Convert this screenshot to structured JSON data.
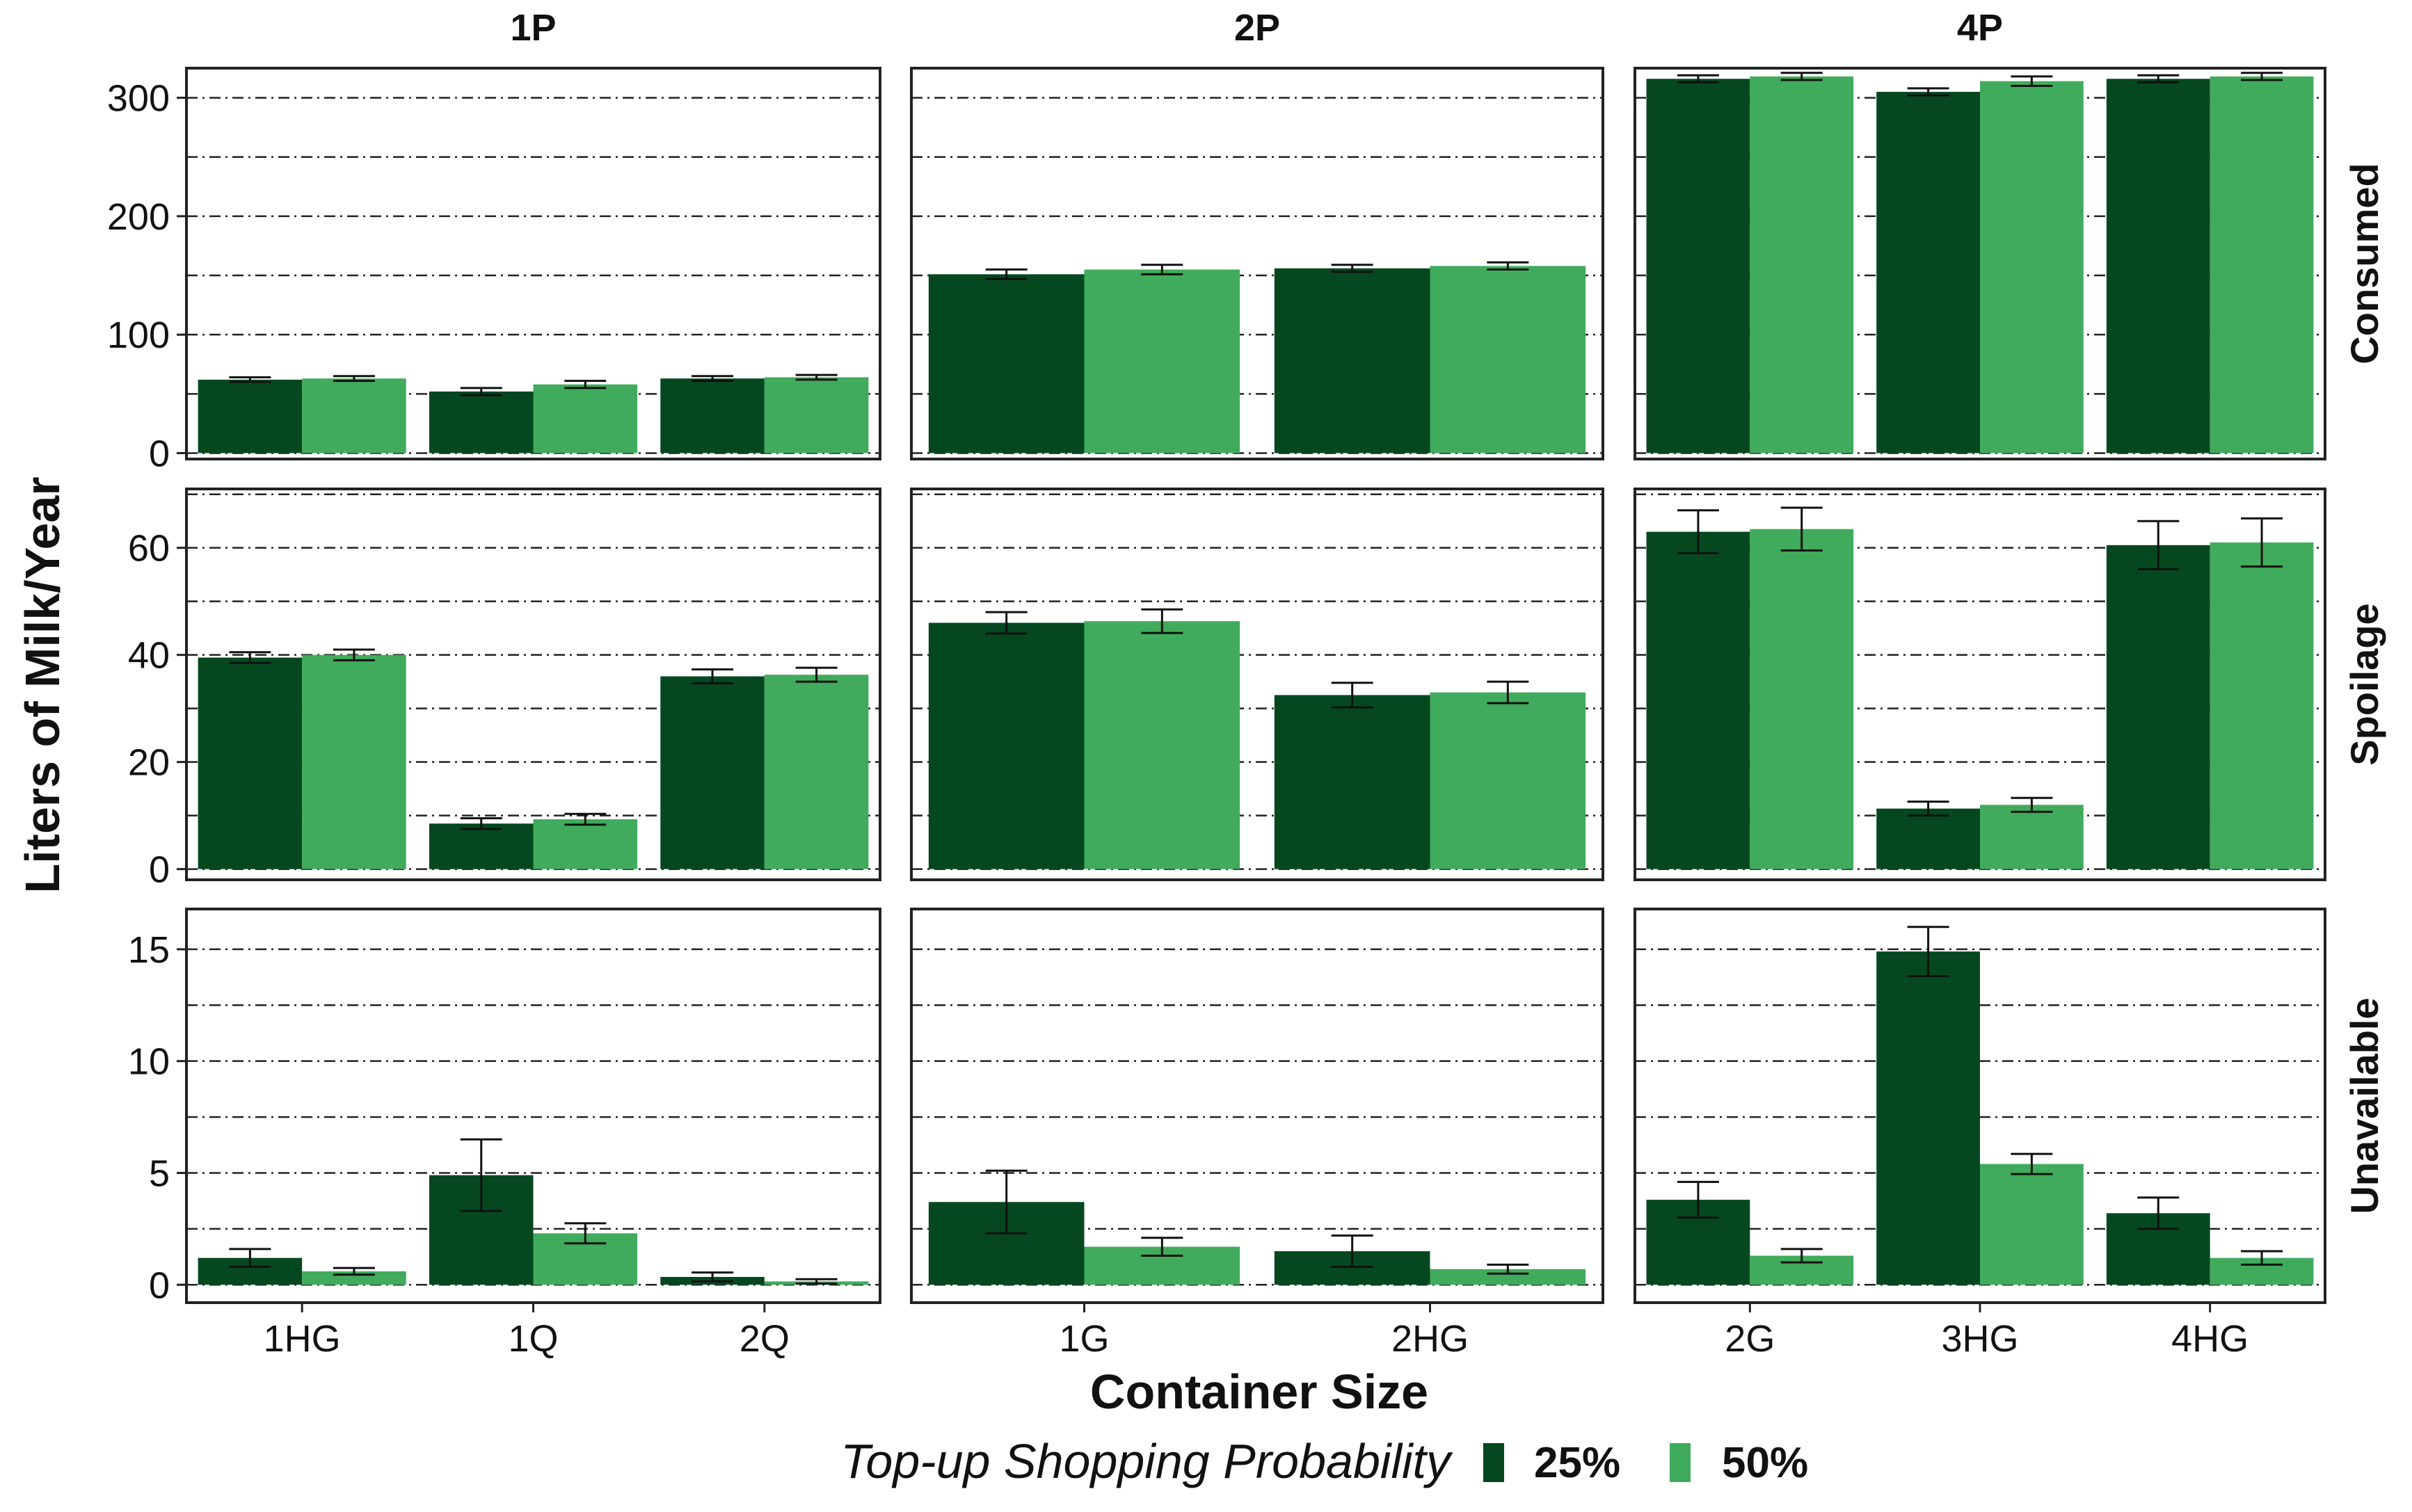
{
  "colors": {
    "series_25": "#05481f",
    "series_50": "#40ab5c",
    "grid": "#222222",
    "panel_border": "#222222"
  },
  "chart_data": {
    "type": "bar",
    "layout": "faceted grid (3 rows x 3 columns), grouped bars with error bars",
    "xlabel": "Container Size",
    "ylabel": "Liters of Milk/Year",
    "legend": {
      "title": "Top-up Shopping Probability",
      "placement": "bottom",
      "entries": [
        "25%",
        "50%"
      ]
    },
    "grid": "dash-dot horizontal lines",
    "columns": [
      {
        "label": "1P",
        "categories": [
          "1HG",
          "1Q",
          "2Q"
        ]
      },
      {
        "label": "2P",
        "categories": [
          "1G",
          "2HG"
        ]
      },
      {
        "label": "4P",
        "categories": [
          "2G",
          "3HG",
          "4HG"
        ]
      }
    ],
    "rows": [
      {
        "label": "Consumed",
        "ylim": [
          -5,
          325
        ],
        "yticks": [
          0,
          100,
          200,
          300
        ],
        "ytick_labels": [
          "0",
          "100",
          "200",
          "300"
        ],
        "gridlines": [
          0,
          50,
          100,
          150,
          200,
          250,
          300
        ],
        "panels": [
          {
            "series": [
              {
                "name": "25%",
                "values": [
                  62,
                  52,
                  63
                ],
                "errors": [
                  2,
                  3,
                  2
                ]
              },
              {
                "name": "50%",
                "values": [
                  63,
                  58,
                  64
                ],
                "errors": [
                  2,
                  3,
                  2
                ]
              }
            ]
          },
          {
            "series": [
              {
                "name": "25%",
                "values": [
                  151,
                  156
                ],
                "errors": [
                  4,
                  3
                ]
              },
              {
                "name": "50%",
                "values": [
                  155,
                  158
                ],
                "errors": [
                  4,
                  3
                ]
              }
            ]
          },
          {
            "series": [
              {
                "name": "25%",
                "values": [
                  316,
                  305,
                  316
                ],
                "errors": [
                  3,
                  3,
                  3
                ]
              },
              {
                "name": "50%",
                "values": [
                  318,
                  314,
                  318
                ],
                "errors": [
                  3,
                  4,
                  3
                ]
              }
            ]
          }
        ]
      },
      {
        "label": "Spoilage",
        "ylim": [
          -2,
          71
        ],
        "yticks": [
          0,
          20,
          40,
          60
        ],
        "ytick_labels": [
          "0",
          "20",
          "40",
          "60"
        ],
        "gridlines": [
          0,
          10,
          20,
          30,
          40,
          50,
          60,
          70
        ],
        "panels": [
          {
            "series": [
              {
                "name": "25%",
                "values": [
                  39.5,
                  8.5,
                  36
                ],
                "errors": [
                  1,
                  1,
                  1.3
                ]
              },
              {
                "name": "50%",
                "values": [
                  40,
                  9.3,
                  36.3
                ],
                "errors": [
                  1,
                  1,
                  1.3
                ]
              }
            ]
          },
          {
            "series": [
              {
                "name": "25%",
                "values": [
                  46,
                  32.5
                ],
                "errors": [
                  2,
                  2.3
                ]
              },
              {
                "name": "50%",
                "values": [
                  46.3,
                  33
                ],
                "errors": [
                  2.2,
                  2
                ]
              }
            ]
          },
          {
            "series": [
              {
                "name": "25%",
                "values": [
                  63,
                  11.3,
                  60.5
                ],
                "errors": [
                  4,
                  1.3,
                  4.5
                ]
              },
              {
                "name": "50%",
                "values": [
                  63.5,
                  12,
                  61
                ],
                "errors": [
                  4,
                  1.3,
                  4.5
                ]
              }
            ]
          }
        ]
      },
      {
        "label": "Unavailable",
        "ylim": [
          -0.8,
          16.8
        ],
        "yticks": [
          0,
          5,
          10,
          15
        ],
        "ytick_labels": [
          "0",
          "5",
          "10",
          "15"
        ],
        "gridlines": [
          0,
          2.5,
          5,
          7.5,
          10,
          12.5,
          15
        ],
        "panels": [
          {
            "series": [
              {
                "name": "25%",
                "values": [
                  1.2,
                  4.9,
                  0.35
                ],
                "errors": [
                  0.4,
                  1.6,
                  0.2
                ]
              },
              {
                "name": "50%",
                "values": [
                  0.6,
                  2.3,
                  0.15
                ],
                "errors": [
                  0.15,
                  0.45,
                  0.1
                ]
              }
            ]
          },
          {
            "series": [
              {
                "name": "25%",
                "values": [
                  3.7,
                  1.5
                ],
                "errors": [
                  1.4,
                  0.7
                ]
              },
              {
                "name": "50%",
                "values": [
                  1.7,
                  0.7
                ],
                "errors": [
                  0.4,
                  0.2
                ]
              }
            ]
          },
          {
            "series": [
              {
                "name": "25%",
                "values": [
                  3.8,
                  14.9,
                  3.2
                ],
                "errors": [
                  0.8,
                  1.1,
                  0.7
                ]
              },
              {
                "name": "50%",
                "values": [
                  1.3,
                  5.4,
                  1.2
                ],
                "errors": [
                  0.3,
                  0.45,
                  0.3
                ]
              }
            ]
          }
        ]
      }
    ]
  }
}
